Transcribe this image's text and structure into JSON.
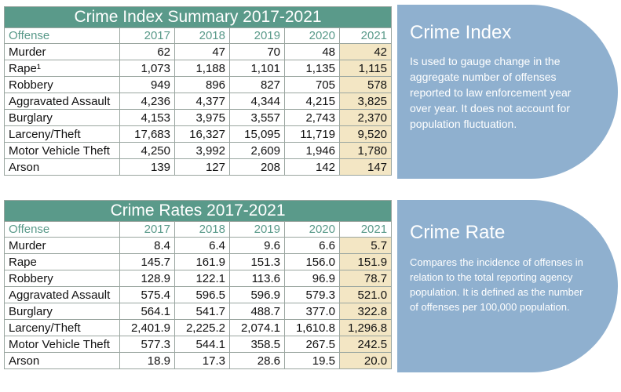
{
  "index_table": {
    "title": "Crime Index Summary 2017-2021",
    "header": [
      "Offense",
      "2017",
      "2018",
      "2019",
      "2020",
      "2021"
    ],
    "rows": [
      [
        "Murder",
        "62",
        "47",
        "70",
        "48",
        "42"
      ],
      [
        "Rape¹",
        "1,073",
        "1,188",
        "1,101",
        "1,135",
        "1,115"
      ],
      [
        "Robbery",
        "949",
        "896",
        "827",
        "705",
        "578"
      ],
      [
        "Aggravated Assault",
        "4,236",
        "4,377",
        "4,344",
        "4,215",
        "3,825"
      ],
      [
        "Burglary",
        "4,153",
        "3,975",
        "3,557",
        "2,743",
        "2,370"
      ],
      [
        "Larceny/Theft",
        "17,683",
        "16,327",
        "15,095",
        "11,719",
        "9,520"
      ],
      [
        "Motor Vehicle Theft",
        "4,250",
        "3,992",
        "2,609",
        "1,946",
        "1,780"
      ],
      [
        "Arson",
        "139",
        "127",
        "208",
        "142",
        "147"
      ]
    ]
  },
  "rates_table": {
    "title": "Crime Rates 2017-2021",
    "header": [
      "Offense",
      "2017",
      "2018",
      "2019",
      "2020",
      "2021"
    ],
    "rows": [
      [
        "Murder",
        "8.4",
        "6.4",
        "9.6",
        "6.6",
        "5.7"
      ],
      [
        "Rape",
        "145.7",
        "161.9",
        "151.3",
        "156.0",
        "151.9"
      ],
      [
        "Robbery",
        "128.9",
        "122.1",
        "113.6",
        "96.9",
        "78.7"
      ],
      [
        "Aggravated Assault",
        "575.4",
        "596.5",
        "596.9",
        "579.3",
        "521.0"
      ],
      [
        "Burglary",
        "564.1",
        "541.7",
        "488.7",
        "377.0",
        "322.8"
      ],
      [
        "Larceny/Theft",
        "2,401.9",
        "2,225.2",
        "2,074.1",
        "1,610.8",
        "1,296.8"
      ],
      [
        "Motor Vehicle Theft",
        "577.3",
        "544.1",
        "358.5",
        "267.5",
        "242.5"
      ],
      [
        "Arson",
        "18.9",
        "17.3",
        "28.6",
        "19.5",
        "20.0"
      ]
    ]
  },
  "index_panel": {
    "heading": "Crime Index",
    "body": "Is used to gauge change in the aggregate number of offenses reported to law enforcement year over year. It does not account for population fluctuation."
  },
  "rate_panel": {
    "heading": "Crime Rate",
    "body": "Compares the incidence of offenses in relation to the total reporting agency population. It is defined as the number of offenses per 100,000 population."
  },
  "colors": {
    "title_bar": "#5a9a8a",
    "header_text": "#5a9a8a",
    "highlight_2021": "#f3e6c4",
    "panel": "#8fb0cf"
  }
}
